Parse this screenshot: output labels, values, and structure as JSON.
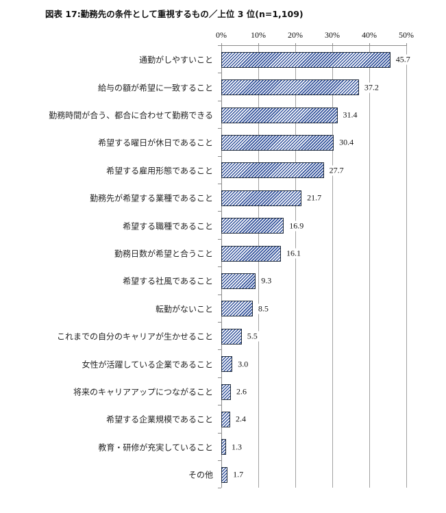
{
  "title": "図表 17:勤務先の条件として重視するもの／上位 3 位(n=1,109)",
  "axis": {
    "ticks": [
      "0%",
      "10%",
      "20%",
      "30%",
      "40%",
      "50%"
    ]
  },
  "chart_data": {
    "type": "bar",
    "orientation": "horizontal",
    "title": "図表 17:勤務先の条件として重視するもの／上位 3 位(n=1,109)",
    "xlabel": "",
    "ylabel": "",
    "xlim": [
      0,
      50
    ],
    "x_ticks": [
      "0%",
      "10%",
      "20%",
      "30%",
      "40%",
      "50%"
    ],
    "x_axis_position": "top",
    "grid": true,
    "legend": null,
    "categories": [
      "通勤がしやすいこと",
      "給与の額が希望に一致すること",
      "勤務時間が合う、都合に合わせて勤務できる",
      "希望する曜日が休日であること",
      "希望する雇用形態であること",
      "勤務先が希望する業種であること",
      "希望する職種であること",
      "勤務日数が希望と合うこと",
      "希望する社風であること",
      "転勤がないこと",
      "これまでの自分のキャリアが生かせること",
      "女性が活躍している企業であること",
      "将来のキャリアアップにつながること",
      "希望する企業規模であること",
      "教育・研修が充実していること",
      "その他"
    ],
    "values": [
      45.7,
      37.2,
      31.4,
      30.4,
      27.7,
      21.7,
      16.9,
      16.1,
      9.3,
      8.5,
      5.5,
      3.0,
      2.6,
      2.4,
      1.3,
      1.7
    ],
    "value_labels": [
      "45.7",
      "37.2",
      "31.4",
      "30.4",
      "27.7",
      "21.7",
      "16.9",
      "16.1",
      "9.3",
      "8.5",
      "5.5",
      "3.0",
      "2.6",
      "2.4",
      "1.3",
      "1.7"
    ],
    "bar_fill": "diagonal hatch",
    "colors": {
      "bar_hatch": "#2f4f9a",
      "bar_border": "#1f2a3a",
      "grid": "#a0a0a0"
    }
  }
}
